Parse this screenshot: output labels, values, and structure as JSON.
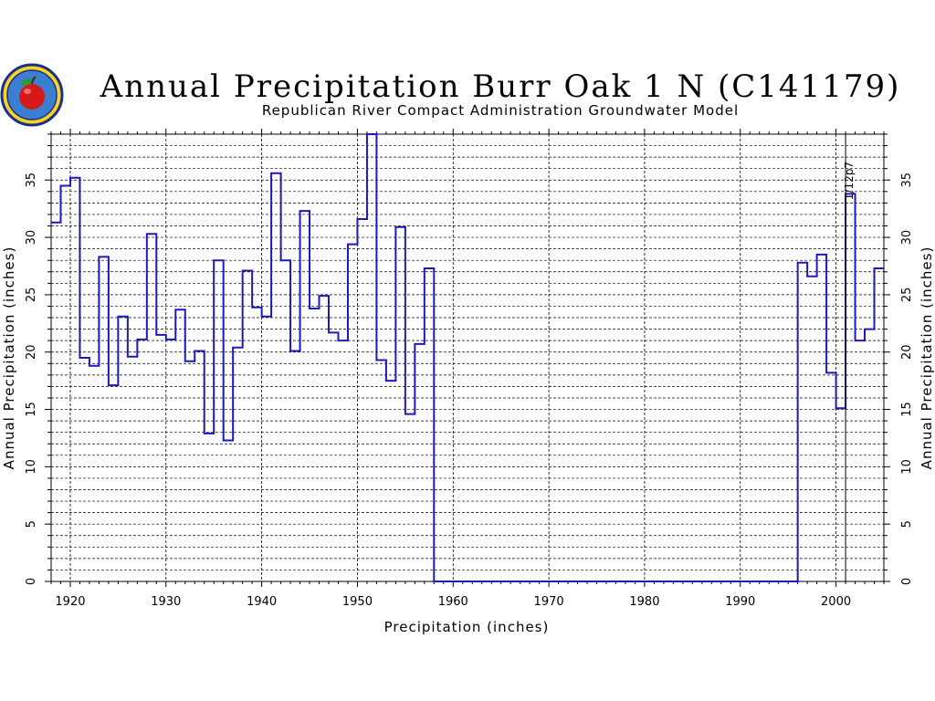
{
  "chart_data": {
    "type": "line",
    "step": true,
    "title": "Annual Precipitation Burr Oak 1 N (C141179)",
    "subtitle": "Republican River Compact Administration Groundwater Model",
    "xlabel": "Precipitation (inches)",
    "ylabel": "Annual Precipitation (inches)",
    "xlim": [
      1918,
      2005
    ],
    "ylim": [
      0,
      39
    ],
    "x_ticks": [
      "1920",
      "1930",
      "1940",
      "1950",
      "1960",
      "1970",
      "1980",
      "1990",
      "2000"
    ],
    "y_ticks": [
      "0",
      "5",
      "10",
      "15",
      "20",
      "25",
      "30",
      "35"
    ],
    "grid": true,
    "annotation": {
      "text": "1/12p7",
      "x": 2001
    },
    "line_color": "#1a1abf",
    "years": [
      1918,
      1919,
      1920,
      1921,
      1922,
      1923,
      1924,
      1925,
      1926,
      1927,
      1928,
      1929,
      1930,
      1931,
      1932,
      1933,
      1934,
      1935,
      1936,
      1937,
      1938,
      1939,
      1940,
      1941,
      1942,
      1943,
      1944,
      1945,
      1946,
      1947,
      1948,
      1949,
      1950,
      1951,
      1952,
      1953,
      1954,
      1955,
      1956,
      1957,
      1958,
      1959,
      1960,
      1961,
      1962,
      1963,
      1964,
      1965,
      1966,
      1967,
      1968,
      1969,
      1970,
      1971,
      1972,
      1973,
      1974,
      1975,
      1976,
      1977,
      1978,
      1979,
      1980,
      1981,
      1982,
      1983,
      1984,
      1985,
      1986,
      1987,
      1988,
      1989,
      1990,
      1991,
      1992,
      1993,
      1994,
      1995,
      1996,
      1997,
      1998,
      1999,
      2000,
      2001,
      2002,
      2003,
      2004
    ],
    "values": [
      31.3,
      34.5,
      35.2,
      19.5,
      18.8,
      28.3,
      17.1,
      23.1,
      19.6,
      21.1,
      30.3,
      21.5,
      21.1,
      23.7,
      19.2,
      20.1,
      12.9,
      28.0,
      12.3,
      20.4,
      27.1,
      23.9,
      23.1,
      35.6,
      28.0,
      20.1,
      32.3,
      23.8,
      24.9,
      21.7,
      21.0,
      29.4,
      31.6,
      39.0,
      19.3,
      17.5,
      30.9,
      14.6,
      20.7,
      27.3,
      0,
      0,
      0,
      0,
      0,
      0,
      0,
      0,
      0,
      0,
      0,
      0,
      0,
      0,
      0,
      0,
      0,
      0,
      0,
      0,
      0,
      0,
      0,
      0,
      0,
      0,
      0,
      0,
      0,
      0,
      0,
      0,
      0,
      0,
      0,
      0,
      0,
      0,
      27.8,
      26.6,
      28.5,
      18.2,
      15.1,
      33.8,
      21.0,
      22.0,
      27.3
    ]
  },
  "logo": {
    "label": "state seal logo"
  }
}
